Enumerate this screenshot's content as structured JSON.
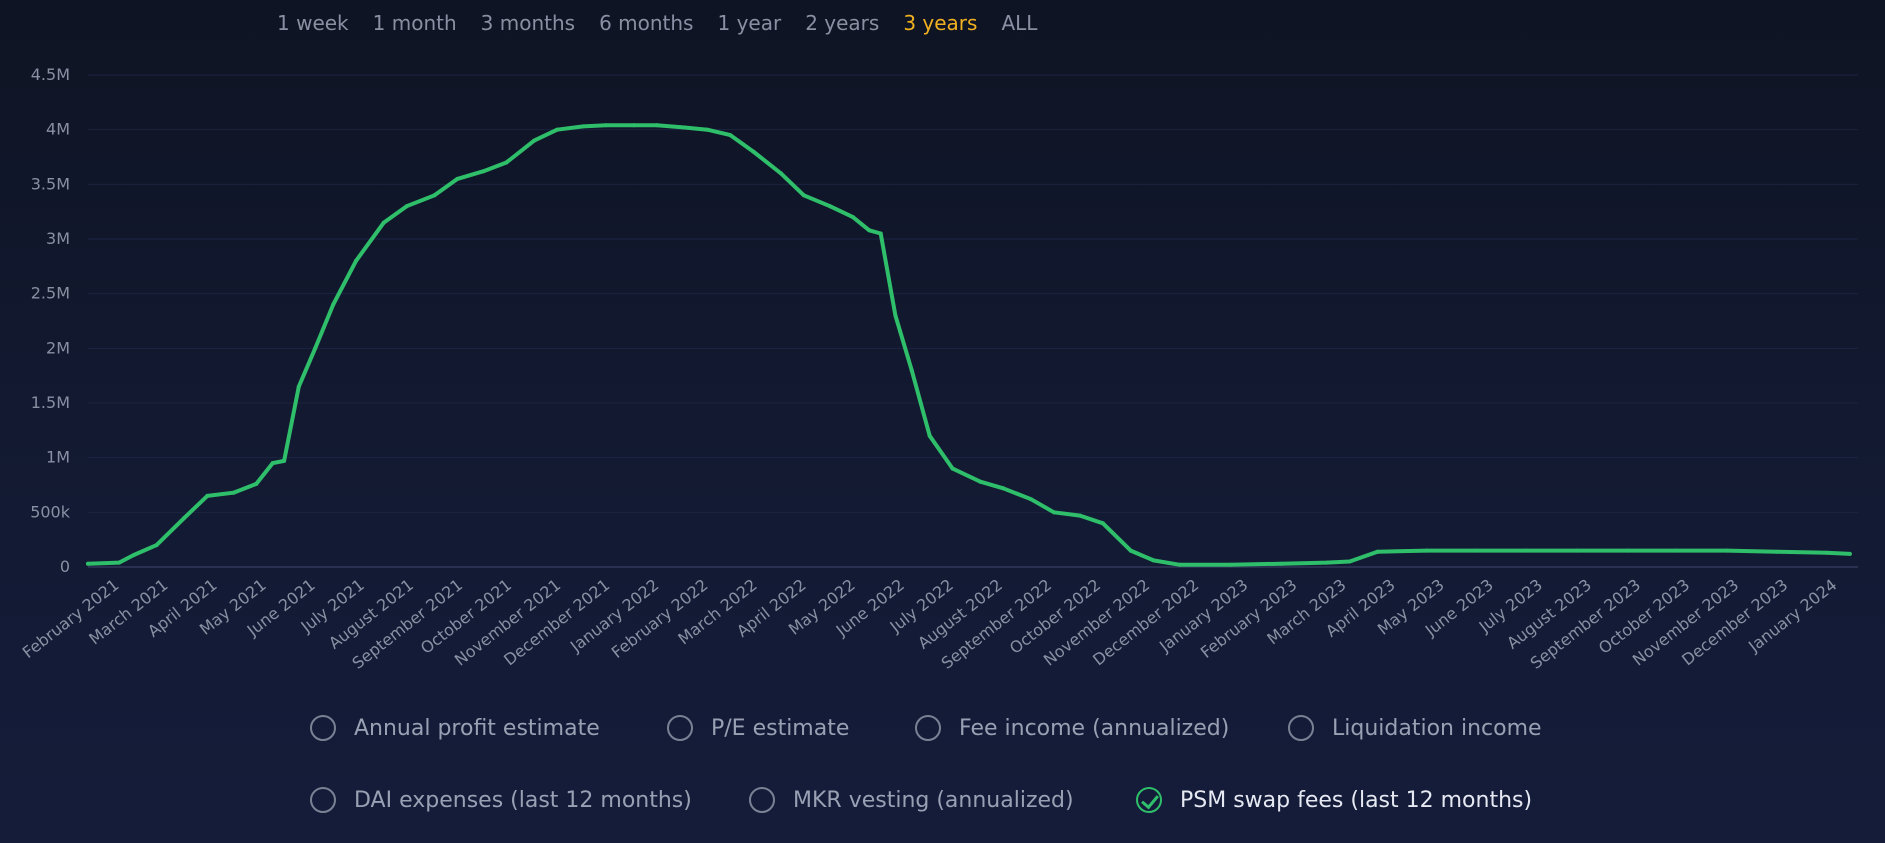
{
  "range_selector": {
    "options": [
      "1 week",
      "1 month",
      "3 months",
      "6 months",
      "1 year",
      "2 years",
      "3 years",
      "ALL"
    ],
    "active_index": 6
  },
  "legend": {
    "items": [
      {
        "label": "Annual profit estimate",
        "checked": false
      },
      {
        "label": "P/E estimate",
        "checked": false
      },
      {
        "label": "Fee income (annualized)",
        "checked": false
      },
      {
        "label": "Liquidation income",
        "checked": false
      },
      {
        "label": "DAI expenses (last 12 months)",
        "checked": false
      },
      {
        "label": "MKR vesting (annualized)",
        "checked": false
      },
      {
        "label": "PSM swap fees (last 12 months)",
        "checked": true
      }
    ]
  },
  "colors": {
    "line": "#2fbf6a",
    "active_range": "#f0b020",
    "background": "#131a33"
  },
  "chart_data": {
    "type": "line",
    "title": "",
    "xlabel": "",
    "ylabel": "",
    "ylim": [
      0,
      4500000
    ],
    "y_ticks": [
      0,
      500000,
      1000000,
      1500000,
      2000000,
      2500000,
      3000000,
      3500000,
      4000000,
      4500000
    ],
    "y_tick_labels": [
      "0",
      "500k",
      "1M",
      "1.5M",
      "2M",
      "2.5M",
      "3M",
      "3.5M",
      "4M",
      "4.5M"
    ],
    "x_tick_labels": [
      "February 2021",
      "March 2021",
      "April 2021",
      "May 2021",
      "June 2021",
      "July 2021",
      "August 2021",
      "September 2021",
      "October 2021",
      "November 2021",
      "December 2021",
      "January 2022",
      "February 2022",
      "March 2022",
      "April 2022",
      "May 2022",
      "June 2022",
      "July 2022",
      "August 2022",
      "September 2022",
      "October 2022",
      "November 2022",
      "December 2022",
      "January 2023",
      "February 2023",
      "March 2023",
      "April 2023",
      "May 2023",
      "June 2023",
      "July 2023",
      "August 2023",
      "September 2023",
      "October 2023",
      "November 2023",
      "December 2023",
      "January 2024"
    ],
    "grid": true,
    "legend": "bottom",
    "series": [
      {
        "name": "PSM swap fees (last 12 months)",
        "x": [
          "2021-02-01",
          "2021-02-20",
          "2021-03-01",
          "2021-03-15",
          "2021-04-01",
          "2021-04-15",
          "2021-05-01",
          "2021-05-15",
          "2021-05-25",
          "2021-06-01",
          "2021-06-10",
          "2021-06-20",
          "2021-07-01",
          "2021-07-15",
          "2021-08-01",
          "2021-08-15",
          "2021-09-01",
          "2021-09-15",
          "2021-10-01",
          "2021-10-15",
          "2021-11-01",
          "2021-11-15",
          "2021-12-01",
          "2021-12-15",
          "2022-01-01",
          "2022-01-15",
          "2022-02-01",
          "2022-02-15",
          "2022-03-01",
          "2022-03-15",
          "2022-04-01",
          "2022-04-15",
          "2022-05-01",
          "2022-05-15",
          "2022-05-25",
          "2022-06-01",
          "2022-06-10",
          "2022-06-20",
          "2022-07-01",
          "2022-07-15",
          "2022-08-01",
          "2022-08-15",
          "2022-09-01",
          "2022-09-15",
          "2022-10-01",
          "2022-10-15",
          "2022-11-01",
          "2022-11-15",
          "2022-12-01",
          "2023-01-01",
          "2023-02-01",
          "2023-03-01",
          "2023-03-15",
          "2023-04-01",
          "2023-05-01",
          "2023-06-01",
          "2023-07-01",
          "2023-08-01",
          "2023-09-01",
          "2023-10-01",
          "2023-11-01",
          "2023-12-01",
          "2024-01-01",
          "2024-01-15"
        ],
        "values": [
          30000,
          40000,
          110000,
          200000,
          450000,
          650000,
          680000,
          760000,
          950000,
          970000,
          1650000,
          2000000,
          2400000,
          2800000,
          3150000,
          3300000,
          3400000,
          3550000,
          3620000,
          3700000,
          3900000,
          4000000,
          4030000,
          4040000,
          4040000,
          4040000,
          4020000,
          4000000,
          3950000,
          3800000,
          3600000,
          3400000,
          3300000,
          3200000,
          3080000,
          3050000,
          2300000,
          1800000,
          1200000,
          900000,
          780000,
          720000,
          620000,
          500000,
          470000,
          400000,
          150000,
          60000,
          20000,
          20000,
          30000,
          40000,
          50000,
          140000,
          150000,
          150000,
          150000,
          150000,
          150000,
          150000,
          150000,
          140000,
          130000,
          120000
        ]
      }
    ]
  }
}
